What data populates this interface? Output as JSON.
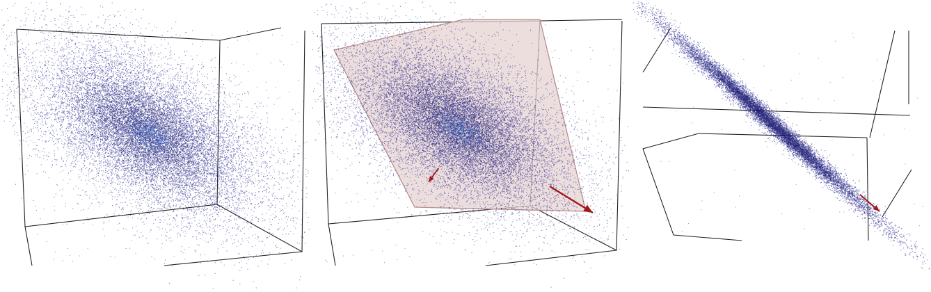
{
  "figure": {
    "panel_count": 3,
    "panels": [
      {
        "name": "original-point-cloud",
        "elements": [
          "bounding-box",
          "point-cloud"
        ]
      },
      {
        "name": "point-cloud-with-principal-plane",
        "elements": [
          "bounding-box",
          "point-cloud",
          "principal-plane",
          "principal-axis-arrows"
        ]
      },
      {
        "name": "projected-flat-cloud",
        "elements": [
          "bounding-box",
          "point-cloud",
          "principal-axis-arrow"
        ]
      }
    ]
  },
  "colors": {
    "points": "#1a1a8c",
    "points_dense": "#0a0a60",
    "core": "#2a64c8",
    "plane_fill": "#e7d3d3",
    "plane_edge": "#b78f8f",
    "arrow": "#a11818",
    "box_line": "#222222",
    "background": "#ffffff"
  }
}
